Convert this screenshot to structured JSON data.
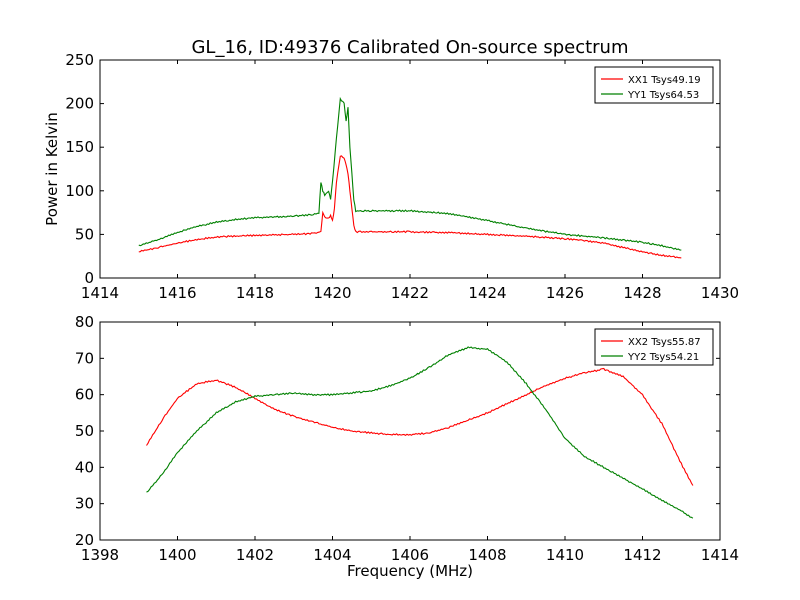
{
  "figure": {
    "title": "GL_16, ID:49376 Calibrated On-source spectrum"
  },
  "colors": {
    "xx": "#ff0000",
    "yy": "#008000"
  },
  "chart_data": [
    {
      "type": "line",
      "title": "GL_16, ID:49376 Calibrated On-source spectrum",
      "xlabel": "",
      "ylabel": "Power in Kelvin",
      "xlim": [
        1414,
        1430
      ],
      "ylim": [
        0,
        250
      ],
      "x_ticks": [
        1414,
        1416,
        1418,
        1420,
        1422,
        1424,
        1426,
        1428,
        1430
      ],
      "y_ticks": [
        0,
        50,
        100,
        150,
        200,
        250
      ],
      "grid": false,
      "legend": "top-right",
      "series": [
        {
          "name": "XX1 Tsys49.19",
          "color": "#ff0000",
          "points": [
            [
              1415.0,
              30
            ],
            [
              1415.5,
              35
            ],
            [
              1416.0,
              40
            ],
            [
              1416.5,
              44
            ],
            [
              1417.0,
              47
            ],
            [
              1417.5,
              48
            ],
            [
              1418.0,
              49
            ],
            [
              1419.0,
              50
            ],
            [
              1419.5,
              51
            ],
            [
              1419.7,
              53
            ],
            [
              1419.75,
              75
            ],
            [
              1419.8,
              70
            ],
            [
              1419.9,
              68
            ],
            [
              1419.95,
              72
            ],
            [
              1420.0,
              66
            ],
            [
              1420.05,
              80
            ],
            [
              1420.1,
              110
            ],
            [
              1420.2,
              140
            ],
            [
              1420.3,
              138
            ],
            [
              1420.35,
              130
            ],
            [
              1420.4,
              120
            ],
            [
              1420.45,
              100
            ],
            [
              1420.5,
              80
            ],
            [
              1420.55,
              60
            ],
            [
              1420.6,
              53
            ],
            [
              1421.0,
              53
            ],
            [
              1422.0,
              53
            ],
            [
              1423.0,
              52
            ],
            [
              1424.0,
              50
            ],
            [
              1425.0,
              48
            ],
            [
              1426.0,
              45
            ],
            [
              1426.5,
              43
            ],
            [
              1427.0,
              40
            ],
            [
              1427.5,
              35
            ],
            [
              1428.0,
              30
            ],
            [
              1428.5,
              26
            ],
            [
              1429.0,
              23
            ]
          ]
        },
        {
          "name": "YY1 Tsys64.53",
          "color": "#008000",
          "points": [
            [
              1415.0,
              37
            ],
            [
              1415.5,
              44
            ],
            [
              1416.0,
              52
            ],
            [
              1416.5,
              59
            ],
            [
              1417.0,
              64
            ],
            [
              1417.5,
              67
            ],
            [
              1418.0,
              69
            ],
            [
              1419.0,
              71
            ],
            [
              1419.5,
              73
            ],
            [
              1419.65,
              75
            ],
            [
              1419.7,
              110
            ],
            [
              1419.75,
              100
            ],
            [
              1419.8,
              95
            ],
            [
              1419.9,
              100
            ],
            [
              1419.95,
              90
            ],
            [
              1420.0,
              110
            ],
            [
              1420.1,
              160
            ],
            [
              1420.2,
              205
            ],
            [
              1420.3,
              200
            ],
            [
              1420.35,
              180
            ],
            [
              1420.4,
              195
            ],
            [
              1420.45,
              150
            ],
            [
              1420.5,
              120
            ],
            [
              1420.55,
              90
            ],
            [
              1420.6,
              77
            ],
            [
              1421.0,
              77
            ],
            [
              1422.0,
              77
            ],
            [
              1423.0,
              74
            ],
            [
              1424.0,
              66
            ],
            [
              1425.0,
              57
            ],
            [
              1426.0,
              50
            ],
            [
              1427.0,
              46
            ],
            [
              1428.0,
              41
            ],
            [
              1428.5,
              37
            ],
            [
              1429.0,
              32
            ]
          ]
        }
      ]
    },
    {
      "type": "line",
      "title": "",
      "xlabel": "Frequency (MHz)",
      "ylabel": "",
      "xlim": [
        1398,
        1414
      ],
      "ylim": [
        20,
        80
      ],
      "x_ticks": [
        1398,
        1400,
        1402,
        1404,
        1406,
        1408,
        1410,
        1412,
        1414
      ],
      "y_ticks": [
        20,
        30,
        40,
        50,
        60,
        70,
        80
      ],
      "grid": false,
      "legend": "top-right",
      "series": [
        {
          "name": "XX2 Tsys55.87",
          "color": "#ff0000",
          "points": [
            [
              1399.2,
              46
            ],
            [
              1399.6,
              53
            ],
            [
              1400.0,
              59
            ],
            [
              1400.5,
              63
            ],
            [
              1401.0,
              64
            ],
            [
              1401.5,
              62
            ],
            [
              1402.0,
              59
            ],
            [
              1402.5,
              56
            ],
            [
              1403.0,
              54
            ],
            [
              1403.5,
              52.5
            ],
            [
              1404.0,
              51
            ],
            [
              1404.5,
              50
            ],
            [
              1405.0,
              49.5
            ],
            [
              1405.5,
              49
            ],
            [
              1406.0,
              49
            ],
            [
              1406.5,
              49.5
            ],
            [
              1407.0,
              51
            ],
            [
              1407.5,
              53
            ],
            [
              1408.0,
              55
            ],
            [
              1408.5,
              57.5
            ],
            [
              1409.0,
              60
            ],
            [
              1409.5,
              62.5
            ],
            [
              1410.0,
              64.5
            ],
            [
              1410.5,
              66
            ],
            [
              1411.0,
              67
            ],
            [
              1411.5,
              65
            ],
            [
              1412.0,
              60
            ],
            [
              1412.5,
              52
            ],
            [
              1413.0,
              41
            ],
            [
              1413.3,
              35
            ]
          ]
        },
        {
          "name": "YY2 Tsys54.21",
          "color": "#008000",
          "points": [
            [
              1399.2,
              33
            ],
            [
              1399.6,
              38
            ],
            [
              1400.0,
              44
            ],
            [
              1400.5,
              50
            ],
            [
              1401.0,
              55
            ],
            [
              1401.5,
              58
            ],
            [
              1402.0,
              59.5
            ],
            [
              1402.5,
              60
            ],
            [
              1403.0,
              60.5
            ],
            [
              1403.5,
              60
            ],
            [
              1404.0,
              60
            ],
            [
              1404.5,
              60.5
            ],
            [
              1405.0,
              61
            ],
            [
              1405.5,
              62.5
            ],
            [
              1406.0,
              64.5
            ],
            [
              1406.5,
              67.5
            ],
            [
              1407.0,
              71
            ],
            [
              1407.5,
              73
            ],
            [
              1408.0,
              72.5
            ],
            [
              1408.5,
              69
            ],
            [
              1409.0,
              63
            ],
            [
              1409.5,
              56
            ],
            [
              1410.0,
              48
            ],
            [
              1410.5,
              43
            ],
            [
              1411.0,
              40
            ],
            [
              1411.5,
              37
            ],
            [
              1412.0,
              34
            ],
            [
              1412.5,
              31
            ],
            [
              1413.0,
              28
            ],
            [
              1413.3,
              26
            ]
          ]
        }
      ]
    }
  ]
}
